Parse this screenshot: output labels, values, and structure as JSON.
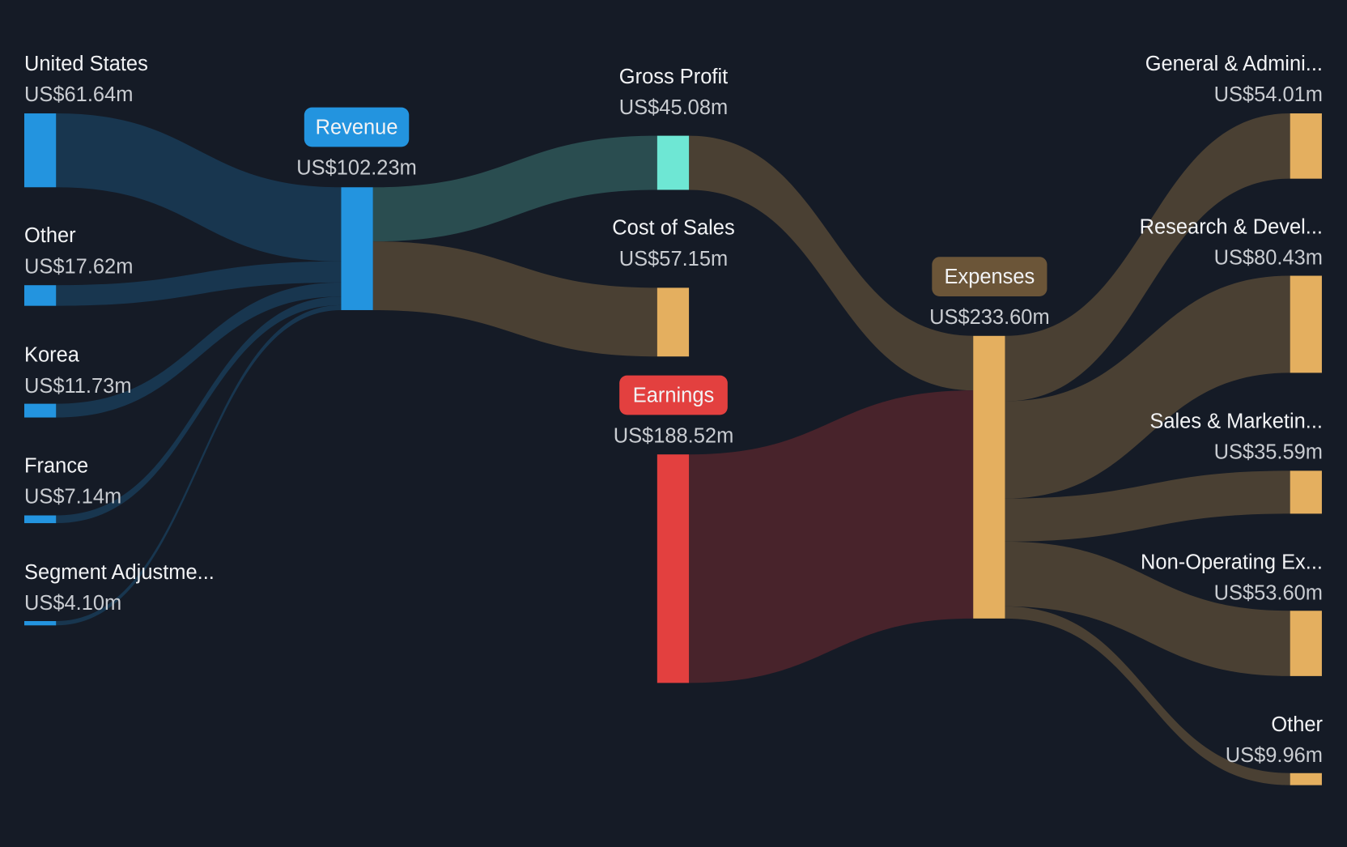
{
  "chart_data": {
    "type": "sankey",
    "currency": "US$",
    "colors": {
      "background": "#151b26",
      "revenue": "#2394df",
      "revenue_link": "#18364f",
      "gross_profit": "#6ee7d4",
      "gross_profit_link": "#2a4d50",
      "expense": "#e4af5f",
      "expense_link": "#4a4033",
      "earnings": "#e3403f",
      "earnings_link": "#48232b",
      "expenses_badge": "#6b5538"
    },
    "nodes": [
      {
        "id": "us",
        "name": "United States",
        "value": "US$61.64m",
        "amount": 61.64
      },
      {
        "id": "other_rev",
        "name": "Other",
        "value": "US$17.62m",
        "amount": 17.62
      },
      {
        "id": "korea",
        "name": "Korea",
        "value": "US$11.73m",
        "amount": 11.73
      },
      {
        "id": "france",
        "name": "France",
        "value": "US$7.14m",
        "amount": 7.14
      },
      {
        "id": "seg",
        "name": "Segment Adjustme...",
        "value": "US$4.10m",
        "amount": 4.1
      },
      {
        "id": "revenue",
        "name": "Revenue",
        "value": "US$102.23m",
        "amount": 102.23
      },
      {
        "id": "gp",
        "name": "Gross Profit",
        "value": "US$45.08m",
        "amount": 45.08
      },
      {
        "id": "cos",
        "name": "Cost of Sales",
        "value": "US$57.15m",
        "amount": 57.15
      },
      {
        "id": "earnings",
        "name": "Earnings",
        "value": "US$188.52m",
        "amount": -188.52
      },
      {
        "id": "expenses",
        "name": "Expenses",
        "value": "US$233.60m",
        "amount": 233.6
      },
      {
        "id": "ga",
        "name": "General & Admini...",
        "value": "US$54.01m",
        "amount": 54.01
      },
      {
        "id": "rd",
        "name": "Research & Devel...",
        "value": "US$80.43m",
        "amount": 80.43
      },
      {
        "id": "sm",
        "name": "Sales & Marketin...",
        "value": "US$35.59m",
        "amount": 35.59
      },
      {
        "id": "nonop",
        "name": "Non-Operating Ex...",
        "value": "US$53.60m",
        "amount": 53.6
      },
      {
        "id": "other_exp",
        "name": "Other",
        "value": "US$9.96m",
        "amount": 9.96
      }
    ],
    "links": [
      {
        "source": "us",
        "target": "revenue",
        "value": 61.64
      },
      {
        "source": "other_rev",
        "target": "revenue",
        "value": 17.62
      },
      {
        "source": "korea",
        "target": "revenue",
        "value": 11.73
      },
      {
        "source": "france",
        "target": "revenue",
        "value": 7.14
      },
      {
        "source": "seg",
        "target": "revenue",
        "value": 4.1
      },
      {
        "source": "revenue",
        "target": "gp",
        "value": 45.08
      },
      {
        "source": "revenue",
        "target": "cos",
        "value": 57.15
      },
      {
        "source": "gp",
        "target": "expenses",
        "value": 45.08
      },
      {
        "source": "earnings",
        "target": "expenses",
        "value": 188.52
      },
      {
        "source": "expenses",
        "target": "ga",
        "value": 54.01
      },
      {
        "source": "expenses",
        "target": "rd",
        "value": 80.43
      },
      {
        "source": "expenses",
        "target": "sm",
        "value": 35.59
      },
      {
        "source": "expenses",
        "target": "nonop",
        "value": 53.6
      },
      {
        "source": "expenses",
        "target": "other_exp",
        "value": 9.96
      }
    ]
  }
}
